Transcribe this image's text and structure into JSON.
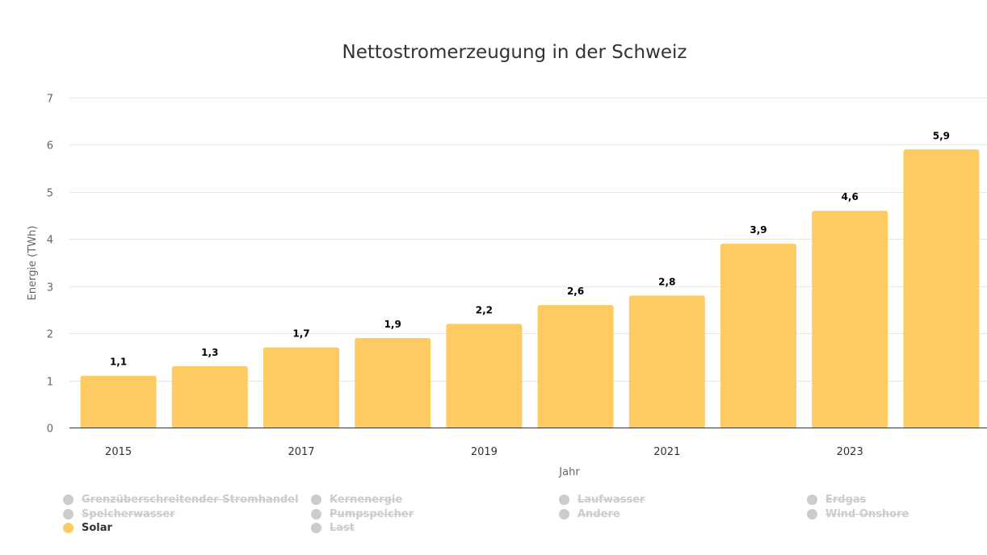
{
  "chart_data": {
    "type": "bar",
    "title": "Nettostromerzeugung in der Schweiz",
    "xlabel": "Jahr",
    "ylabel": "Energie (TWh)",
    "categories": [
      "2015",
      "2016",
      "2017",
      "2018",
      "2019",
      "2020",
      "2021",
      "2022",
      "2023",
      "2024"
    ],
    "x_tick_labels": [
      "2015",
      "",
      "2017",
      "",
      "2019",
      "",
      "2021",
      "",
      "2023",
      ""
    ],
    "series": [
      {
        "name": "Solar",
        "color": "#fecb62",
        "values": [
          1.1,
          1.3,
          1.7,
          1.9,
          2.2,
          2.6,
          2.8,
          3.9,
          4.6,
          5.9
        ],
        "labels": [
          "1,1",
          "1,3",
          "1,7",
          "1,9",
          "2,2",
          "2,6",
          "2,8",
          "3,9",
          "4,6",
          "5,9"
        ]
      }
    ],
    "ylim": [
      0,
      7
    ],
    "yticks": [
      0,
      1,
      2,
      3,
      4,
      5,
      6,
      7
    ],
    "grid": true,
    "legend_position": "bottom"
  },
  "legend": {
    "items": [
      {
        "label": "Grenzüberschreitender Stromhandel",
        "visible": false,
        "color": "#cccccc"
      },
      {
        "label": "Kernenergie",
        "visible": false,
        "color": "#cccccc"
      },
      {
        "label": "Laufwasser",
        "visible": false,
        "color": "#cccccc"
      },
      {
        "label": "Erdgas",
        "visible": false,
        "color": "#cccccc"
      },
      {
        "label": "Speicherwasser",
        "visible": false,
        "color": "#cccccc"
      },
      {
        "label": "Pumpspeicher",
        "visible": false,
        "color": "#cccccc"
      },
      {
        "label": "Andere",
        "visible": false,
        "color": "#cccccc"
      },
      {
        "label": "Wind Onshore",
        "visible": false,
        "color": "#cccccc"
      },
      {
        "label": "Solar",
        "visible": true,
        "color": "#fecb62"
      },
      {
        "label": "Last",
        "visible": false,
        "color": "#cccccc"
      }
    ]
  }
}
